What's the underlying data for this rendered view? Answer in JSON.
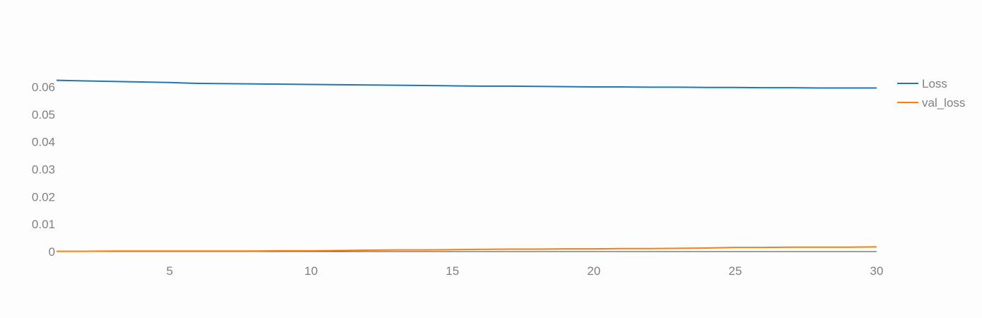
{
  "chart_data": {
    "type": "line",
    "title": "",
    "xlabel": "",
    "ylabel": "",
    "x": [
      1,
      2,
      3,
      4,
      5,
      6,
      7,
      8,
      9,
      10,
      11,
      12,
      13,
      14,
      15,
      16,
      17,
      18,
      19,
      20,
      21,
      22,
      23,
      24,
      25,
      26,
      27,
      28,
      29,
      30
    ],
    "xlim": [
      1,
      30
    ],
    "ylim": [
      0,
      0.06
    ],
    "x_ticks": [
      "5",
      "10",
      "15",
      "20",
      "25",
      "30"
    ],
    "y_ticks": [
      "0",
      "0.01",
      "0.02",
      "0.03",
      "0.04",
      "0.05",
      "0.06"
    ],
    "grid": false,
    "legend_position": "top-right",
    "series": [
      {
        "name": "Loss",
        "color": "#1f77b4",
        "values": [
          0.0624,
          0.0622,
          0.062,
          0.0618,
          0.0616,
          0.0613,
          0.0612,
          0.0611,
          0.061,
          0.0609,
          0.0608,
          0.0607,
          0.0606,
          0.0605,
          0.0604,
          0.0603,
          0.0603,
          0.0602,
          0.0601,
          0.06,
          0.06,
          0.0599,
          0.0599,
          0.0598,
          0.0598,
          0.0597,
          0.0597,
          0.0596,
          0.0596,
          0.0596
        ]
      },
      {
        "name": "val_loss",
        "color": "#ff7f0e",
        "values": [
          0.0001,
          0.0001,
          0.0002,
          0.0002,
          0.0002,
          0.0002,
          0.0002,
          0.0002,
          0.0003,
          0.0003,
          0.0004,
          0.0005,
          0.0006,
          0.0006,
          0.0007,
          0.0008,
          0.0009,
          0.0009,
          0.001,
          0.001,
          0.0011,
          0.0011,
          0.0012,
          0.0013,
          0.0015,
          0.0015,
          0.0016,
          0.0016,
          0.0016,
          0.0017
        ]
      }
    ]
  }
}
